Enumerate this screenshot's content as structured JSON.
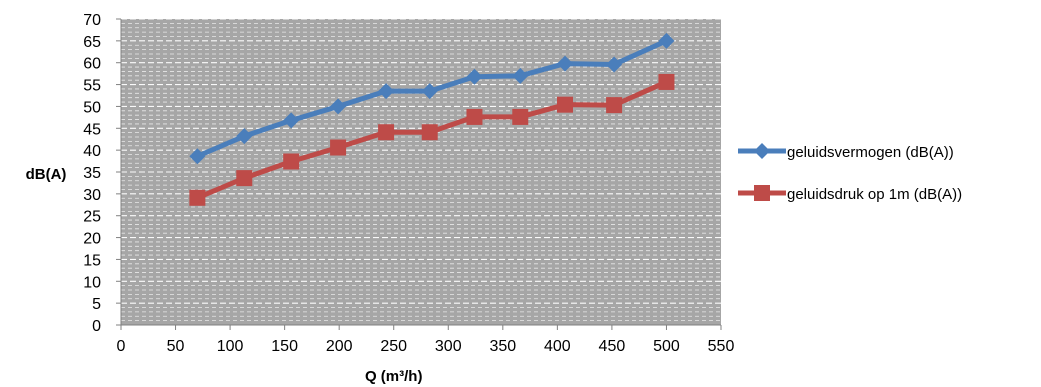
{
  "chart_data": {
    "type": "line",
    "title": "",
    "xlabel": "Q (m³/h)",
    "ylabel": "dB(A)",
    "xlim": [
      0,
      550
    ],
    "ylim": [
      0,
      70
    ],
    "x_ticks": [
      0,
      50,
      100,
      150,
      200,
      250,
      300,
      350,
      400,
      450,
      500,
      550
    ],
    "y_ticks": [
      0,
      5,
      10,
      15,
      20,
      25,
      30,
      35,
      40,
      45,
      50,
      55,
      60,
      65,
      70
    ],
    "grid": true,
    "plot_background": "#a6a6a6",
    "gridline_color": "#ffffff",
    "legend_position": "right",
    "series": [
      {
        "name": "geluidsvermogen (dB(A))",
        "color": "#4a7ebb",
        "marker": "diamond",
        "x": [
          70,
          113,
          156,
          199,
          243,
          283,
          324,
          366,
          407,
          452,
          500
        ],
        "y": [
          38.6,
          43.2,
          46.8,
          50.0,
          53.5,
          53.5,
          56.8,
          57.0,
          59.8,
          59.6,
          65.0
        ]
      },
      {
        "name": "geluidsdruk op 1m (dB(A))",
        "color": "#be4b48",
        "marker": "square",
        "x": [
          70,
          113,
          156,
          199,
          243,
          283,
          324,
          366,
          407,
          452,
          500
        ],
        "y": [
          29.1,
          33.6,
          37.4,
          40.6,
          44.1,
          44.1,
          47.6,
          47.6,
          50.4,
          50.3,
          55.6
        ]
      }
    ]
  }
}
